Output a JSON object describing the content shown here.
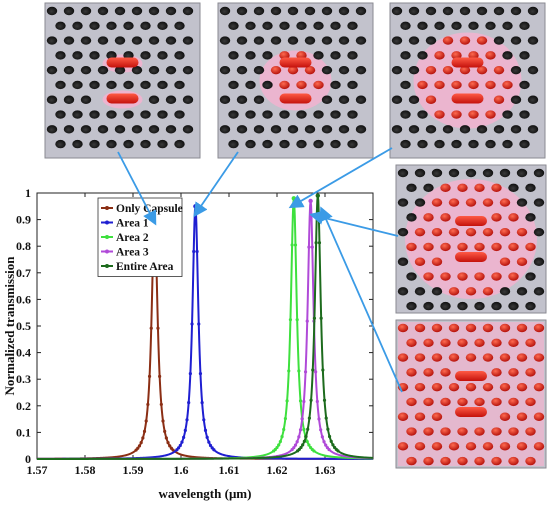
{
  "colors": {
    "plate": "#c2c2cc",
    "plate_edge": "#8a8a92",
    "hole": "#1a1a1a",
    "capsule": "#e0261f",
    "glow": "#f2b3cf",
    "arrow": "#3b9be6"
  },
  "insets": [
    {
      "pattern": "only-capsule"
    },
    {
      "pattern": "area-1"
    },
    {
      "pattern": "area-2"
    },
    {
      "pattern": "area-3"
    },
    {
      "pattern": "entire-area"
    }
  ],
  "chart_data": {
    "type": "line",
    "xlabel": "wavelength (μm)",
    "ylabel": "Normalized transmission",
    "xlim": [
      1.57,
      1.64
    ],
    "ylim": [
      0,
      1
    ],
    "xticks": [
      "1.57",
      "1.58",
      "1.59",
      "1.6",
      "1.61",
      "1.62",
      "1.63"
    ],
    "xtick_values": [
      1.57,
      1.58,
      1.59,
      1.6,
      1.61,
      1.62,
      1.63
    ],
    "yticks": [
      "0",
      "0.1",
      "0.2",
      "0.3",
      "0.4",
      "0.5",
      "0.6",
      "0.7",
      "0.8",
      "0.9",
      "1"
    ],
    "ytick_values": [
      0,
      0.1,
      0.2,
      0.3,
      0.4,
      0.5,
      0.6,
      0.7,
      0.8,
      0.9,
      1
    ],
    "legend_position": "top-left",
    "series": [
      {
        "name": "Only Capsule",
        "color": "#8b2e14",
        "peak_x": 1.5945,
        "peak_y": 0.92
      },
      {
        "name": "Area 1",
        "color": "#1f1fd1",
        "peak_x": 1.603,
        "peak_y": 0.95
      },
      {
        "name": "Area 2",
        "color": "#3ee03e",
        "peak_x": 1.6235,
        "peak_y": 0.98
      },
      {
        "name": "Area 3",
        "color": "#b04ad8",
        "peak_x": 1.627,
        "peak_y": 0.97
      },
      {
        "name": "Entire Area",
        "color": "#1d6b1d",
        "peak_x": 1.6285,
        "peak_y": 0.99
      }
    ]
  }
}
